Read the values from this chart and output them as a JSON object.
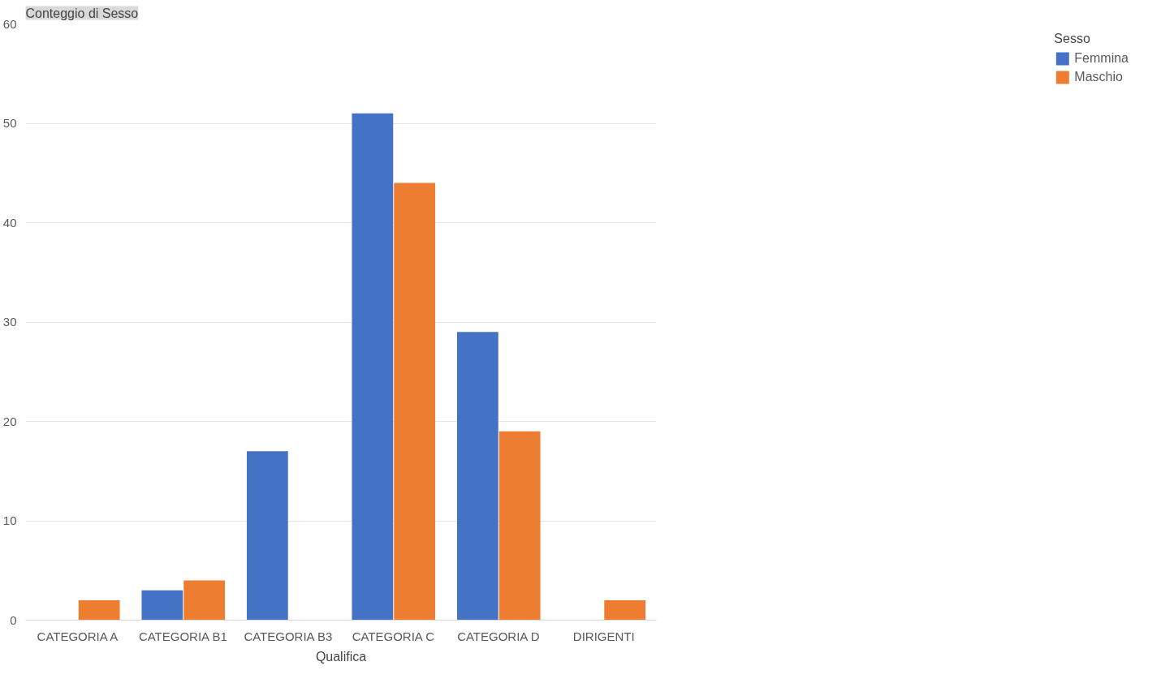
{
  "chart_data": {
    "type": "bar",
    "title": "Conteggio di Sesso",
    "xlabel": "Qualifica",
    "legend_title": "Sesso",
    "categories": [
      "CATEGORIA A",
      "CATEGORIA B1",
      "CATEGORIA B3",
      "CATEGORIA C",
      "CATEGORIA D",
      "DIRIGENTI"
    ],
    "series": [
      {
        "name": "Femmina",
        "color": "#4472c4",
        "values": [
          null,
          3,
          17,
          51,
          29,
          null
        ]
      },
      {
        "name": "Maschio",
        "color": "#ed7d31",
        "values": [
          2,
          4,
          null,
          44,
          19,
          2
        ]
      }
    ],
    "ylim": [
      0,
      60
    ],
    "yticks": [
      0,
      10,
      20,
      30,
      40,
      50,
      60
    ],
    "grid": "y",
    "legend": "right"
  }
}
